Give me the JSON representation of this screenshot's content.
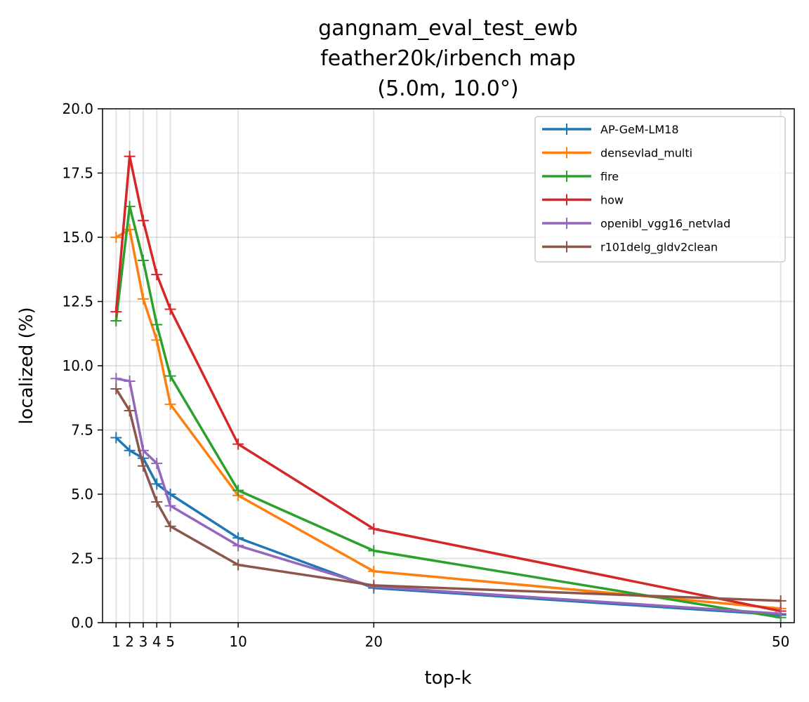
{
  "chart_data": {
    "type": "line",
    "title_lines": [
      "gangnam_eval_test_ewb",
      "feather20k/irbench map",
      "(5.0m, 10.0°)"
    ],
    "xlabel": "top-k",
    "ylabel": "localized (%)",
    "x": [
      1,
      2,
      3,
      4,
      5,
      10,
      20,
      50
    ],
    "xlim": [
      0,
      51
    ],
    "ylim": [
      0,
      20
    ],
    "xticks": [
      1,
      2,
      3,
      4,
      5,
      10,
      20,
      50
    ],
    "xtick_labels": [
      "1",
      "2",
      "3",
      "4",
      "5",
      "10",
      "20",
      "50"
    ],
    "yticks": [
      0,
      2.5,
      5,
      7.5,
      10,
      12.5,
      15,
      17.5,
      20
    ],
    "ytick_labels": [
      "0.0",
      "2.5",
      "5.0",
      "7.5",
      "10.0",
      "12.5",
      "15.0",
      "17.5",
      "20.0"
    ],
    "grid": true,
    "legend_position": "top-right",
    "series": [
      {
        "name": "AP-GeM-LM18",
        "color": "#1f77b4",
        "values": [
          7.2,
          6.7,
          6.4,
          5.4,
          5.0,
          3.3,
          1.35,
          0.3
        ]
      },
      {
        "name": "densevlad_multi",
        "color": "#ff7f0e",
        "values": [
          15.0,
          15.3,
          12.6,
          11.0,
          8.5,
          4.95,
          2.0,
          0.55
        ]
      },
      {
        "name": "fire",
        "color": "#2ca02c",
        "values": [
          11.75,
          16.2,
          14.1,
          11.6,
          9.6,
          5.15,
          2.8,
          0.2
        ]
      },
      {
        "name": "how",
        "color": "#d62728",
        "values": [
          12.1,
          18.15,
          15.65,
          13.55,
          12.2,
          6.95,
          3.65,
          0.45
        ]
      },
      {
        "name": "openibl_vgg16_netvlad",
        "color": "#9467bd",
        "values": [
          9.5,
          9.4,
          6.7,
          6.2,
          4.55,
          3.0,
          1.4,
          0.35
        ]
      },
      {
        "name": "r101delg_gldv2clean",
        "color": "#8c564b",
        "values": [
          9.1,
          8.25,
          6.1,
          4.7,
          3.75,
          2.25,
          1.45,
          0.85
        ]
      }
    ]
  }
}
